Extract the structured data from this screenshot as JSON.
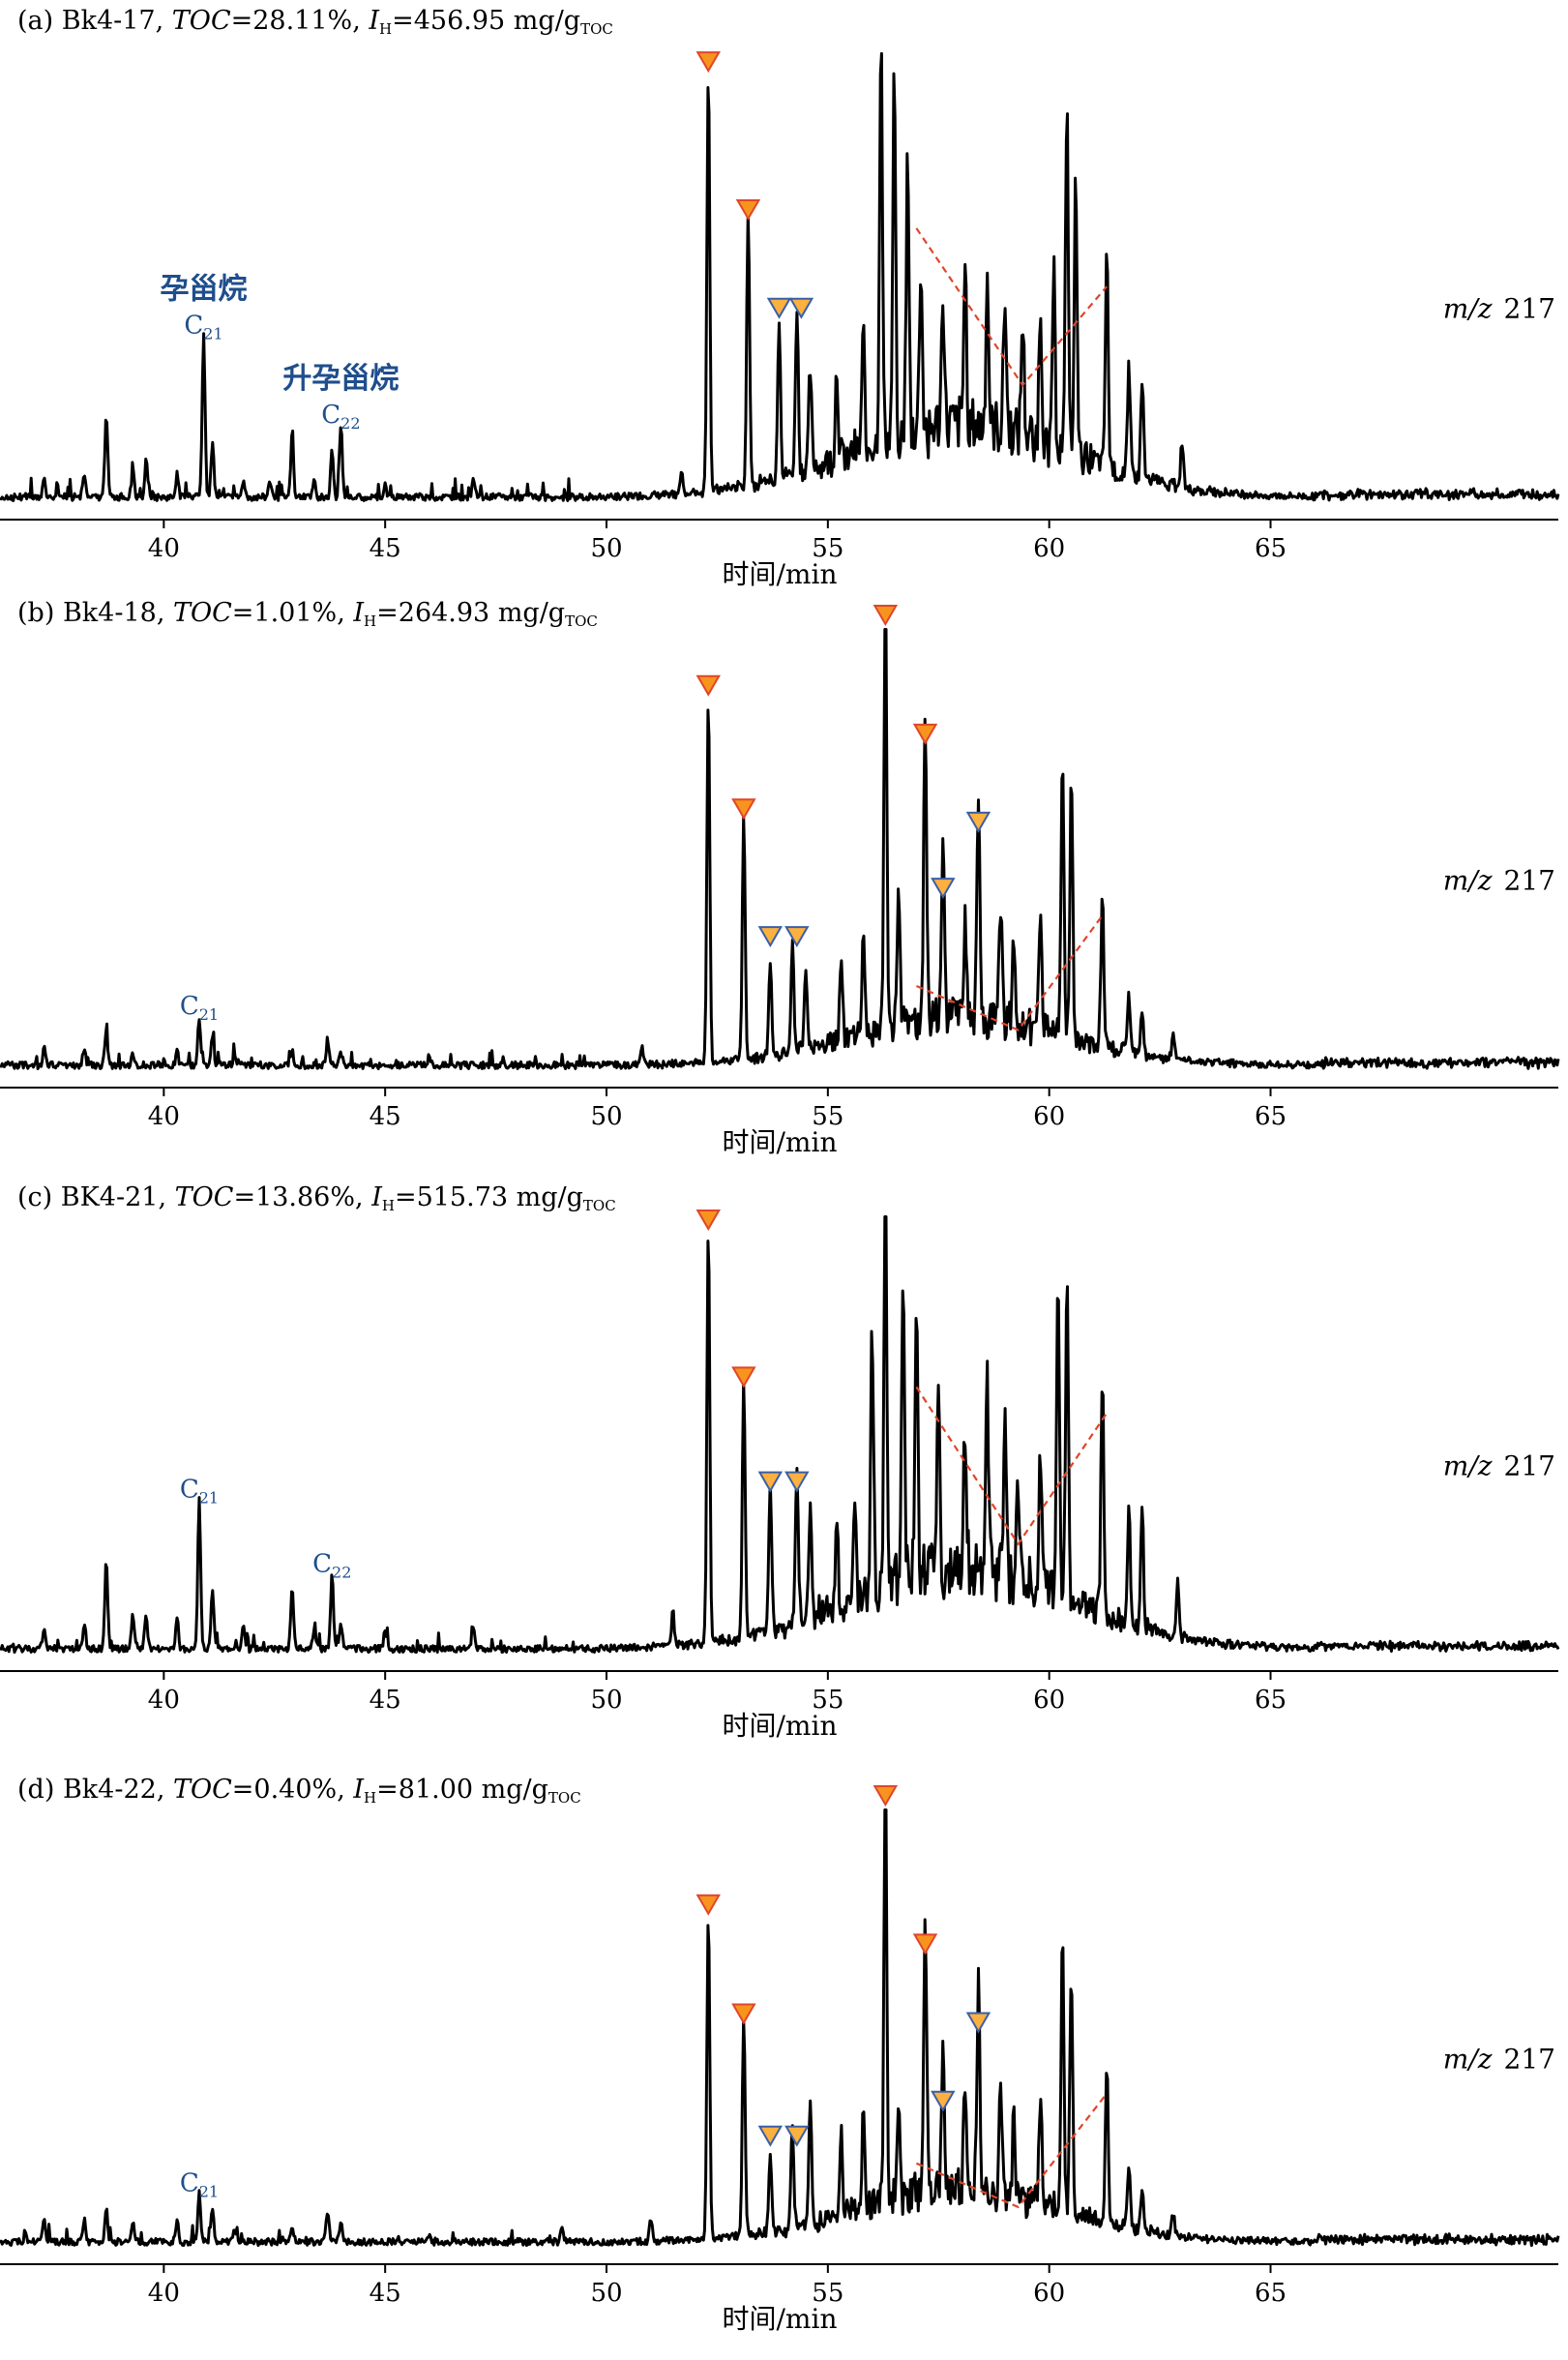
{
  "figure": {
    "ion_label_mz": "m/z",
    "ion_label_value": "217",
    "xlabel": "时间/min",
    "xticks": [
      40,
      45,
      50,
      55,
      60,
      65
    ],
    "xlim": [
      36.3,
      71.5
    ],
    "triangle_colors": {
      "orange": "#f7941d",
      "orange_border": "#e0452a",
      "blue_border": "#3a5fa8",
      "fill": "#fbb040"
    },
    "trend_line_color": "#e0452a",
    "annotation_color": "#1f4e8c"
  },
  "chart_data": [
    {
      "type": "line",
      "panel": "a",
      "sample": "Bk4-17",
      "header_prefix": "(a) ",
      "toc": "28.11%",
      "ih": "456.95 mg/g",
      "ih_unit_sub": "TOC",
      "xlabel": "时间/min",
      "ylabel": "",
      "xlim": [
        36.3,
        71.5
      ],
      "ylim": [
        0,
        100
      ],
      "annotations": [
        {
          "label_cn": "孕甾烷",
          "label": "C",
          "sub": "21",
          "x": 40.9
        },
        {
          "label_cn": "升孕甾烷",
          "label": "C",
          "sub": "22",
          "x": 44.0
        }
      ],
      "peaks": [
        [
          37.3,
          4
        ],
        [
          38.2,
          5
        ],
        [
          38.7,
          19
        ],
        [
          39.3,
          6
        ],
        [
          39.6,
          8
        ],
        [
          40.3,
          5
        ],
        [
          40.9,
          36
        ],
        [
          41.1,
          12
        ],
        [
          41.8,
          4
        ],
        [
          42.4,
          3
        ],
        [
          42.9,
          14
        ],
        [
          43.4,
          4
        ],
        [
          43.8,
          10
        ],
        [
          44.0,
          16
        ],
        [
          45.0,
          3
        ],
        [
          47.0,
          4
        ],
        [
          51.7,
          5
        ],
        [
          52.3,
          95
        ],
        [
          53.2,
          62
        ],
        [
          53.9,
          36
        ],
        [
          54.3,
          37
        ],
        [
          54.6,
          22
        ],
        [
          55.2,
          20
        ],
        [
          55.8,
          25
        ],
        [
          56.2,
          92
        ],
        [
          56.5,
          80
        ],
        [
          56.8,
          60
        ],
        [
          57.1,
          38
        ],
        [
          57.6,
          30
        ],
        [
          58.1,
          36
        ],
        [
          58.6,
          34
        ],
        [
          59.0,
          30
        ],
        [
          59.4,
          26
        ],
        [
          59.8,
          30
        ],
        [
          60.1,
          40
        ],
        [
          60.4,
          78
        ],
        [
          60.6,
          62
        ],
        [
          61.3,
          48
        ],
        [
          61.8,
          25
        ],
        [
          62.1,
          22
        ],
        [
          63.0,
          10
        ]
      ],
      "baseline_hump": {
        "center": 58.0,
        "width": 3.6,
        "height": 16
      },
      "triangles": [
        {
          "x": 52.3,
          "level": 95,
          "color": "orange"
        },
        {
          "x": 53.2,
          "level": 62,
          "color": "orange"
        },
        {
          "x": 53.9,
          "level": 40,
          "color": "blue"
        },
        {
          "x": 54.4,
          "level": 40,
          "color": "blue"
        }
      ],
      "trend_line": [
        [
          57.0,
          62
        ],
        [
          59.4,
          27
        ],
        [
          61.3,
          49
        ]
      ]
    },
    {
      "type": "line",
      "panel": "b",
      "sample": "Bk4-18",
      "header_prefix": "(b) ",
      "toc": "1.01%",
      "ih": "264.93 mg/g",
      "ih_unit_sub": "TOC",
      "xlabel": "时间/min",
      "ylabel": "",
      "xlim": [
        36.3,
        71.5
      ],
      "ylim": [
        0,
        100
      ],
      "annotations": [
        {
          "label_cn": "",
          "label": "C",
          "sub": "21",
          "x": 40.8
        }
      ],
      "peaks": [
        [
          37.3,
          4
        ],
        [
          38.2,
          4
        ],
        [
          38.7,
          8
        ],
        [
          39.3,
          3
        ],
        [
          40.3,
          3
        ],
        [
          40.8,
          11
        ],
        [
          41.1,
          6
        ],
        [
          41.6,
          2
        ],
        [
          42.9,
          3
        ],
        [
          43.7,
          6
        ],
        [
          44.0,
          3
        ],
        [
          46.0,
          2
        ],
        [
          50.8,
          4
        ],
        [
          52.3,
          84
        ],
        [
          53.1,
          56
        ],
        [
          53.7,
          22
        ],
        [
          54.2,
          25
        ],
        [
          54.5,
          18
        ],
        [
          55.3,
          18
        ],
        [
          55.8,
          20
        ],
        [
          56.3,
          100
        ],
        [
          56.6,
          30
        ],
        [
          57.2,
          72
        ],
        [
          57.6,
          40
        ],
        [
          58.1,
          22
        ],
        [
          58.4,
          52
        ],
        [
          58.9,
          28
        ],
        [
          59.2,
          18
        ],
        [
          59.8,
          25
        ],
        [
          60.3,
          64
        ],
        [
          60.5,
          60
        ],
        [
          61.2,
          35
        ],
        [
          61.8,
          12
        ],
        [
          62.1,
          10
        ],
        [
          62.8,
          5
        ]
      ],
      "baseline_hump": {
        "center": 58.0,
        "width": 3.4,
        "height": 11
      },
      "triangles": [
        {
          "x": 52.3,
          "level": 84,
          "color": "orange"
        },
        {
          "x": 53.1,
          "level": 56,
          "color": "orange"
        },
        {
          "x": 56.3,
          "level": 100,
          "color": "orange"
        },
        {
          "x": 57.2,
          "level": 73,
          "color": "orange"
        },
        {
          "x": 53.7,
          "level": 27,
          "color": "blue"
        },
        {
          "x": 54.3,
          "level": 27,
          "color": "blue"
        },
        {
          "x": 57.6,
          "level": 38,
          "color": "blue"
        },
        {
          "x": 58.4,
          "level": 53,
          "color": "blue"
        }
      ],
      "trend_line": [
        [
          57.0,
          20
        ],
        [
          59.3,
          10
        ],
        [
          61.2,
          36
        ]
      ]
    },
    {
      "type": "line",
      "panel": "c",
      "sample": "BK4-21",
      "header_prefix": "(c) ",
      "toc": "13.86%",
      "ih": "515.73 mg/g",
      "ih_unit_sub": "TOC",
      "xlabel": "时间/min",
      "ylabel": "",
      "xlim": [
        36.3,
        71.5
      ],
      "ylim": [
        0,
        100
      ],
      "annotations": [
        {
          "label_cn": "",
          "label": "C",
          "sub": "21",
          "x": 40.8
        },
        {
          "label_cn": "",
          "label": "C",
          "sub": "22",
          "x": 43.8
        }
      ],
      "peaks": [
        [
          37.3,
          4
        ],
        [
          38.2,
          5
        ],
        [
          38.7,
          20
        ],
        [
          39.3,
          8
        ],
        [
          39.6,
          8
        ],
        [
          40.3,
          7
        ],
        [
          40.8,
          34
        ],
        [
          41.1,
          14
        ],
        [
          41.8,
          5
        ],
        [
          42.9,
          14
        ],
        [
          43.4,
          5
        ],
        [
          43.8,
          17
        ],
        [
          44.0,
          6
        ],
        [
          45.0,
          4
        ],
        [
          47.0,
          5
        ],
        [
          51.5,
          8
        ],
        [
          52.3,
          96
        ],
        [
          53.1,
          60
        ],
        [
          53.7,
          34
        ],
        [
          54.3,
          36
        ],
        [
          54.6,
          25
        ],
        [
          55.2,
          20
        ],
        [
          55.6,
          22
        ],
        [
          56.0,
          60
        ],
        [
          56.3,
          96
        ],
        [
          56.7,
          70
        ],
        [
          57.0,
          62
        ],
        [
          57.5,
          40
        ],
        [
          58.1,
          34
        ],
        [
          58.6,
          46
        ],
        [
          59.0,
          36
        ],
        [
          59.3,
          25
        ],
        [
          59.8,
          30
        ],
        [
          60.2,
          76
        ],
        [
          60.4,
          72
        ],
        [
          61.2,
          54
        ],
        [
          61.8,
          28
        ],
        [
          62.1,
          26
        ],
        [
          62.9,
          12
        ]
      ],
      "baseline_hump": {
        "center": 58.0,
        "width": 3.6,
        "height": 18
      },
      "triangles": [
        {
          "x": 52.3,
          "level": 96,
          "color": "orange"
        },
        {
          "x": 53.1,
          "level": 60,
          "color": "orange"
        },
        {
          "x": 53.7,
          "level": 36,
          "color": "blue"
        },
        {
          "x": 54.3,
          "level": 36,
          "color": "blue"
        }
      ],
      "trend_line": [
        [
          57.0,
          62
        ],
        [
          59.3,
          26
        ],
        [
          61.3,
          56
        ]
      ]
    },
    {
      "type": "line",
      "panel": "d",
      "sample": "Bk4-22",
      "header_prefix": "(d) ",
      "toc": "0.40%",
      "ih": "81.00 mg/g",
      "ih_unit_sub": "TOC",
      "xlabel": "时间/min",
      "ylabel": "",
      "xlim": [
        36.3,
        71.5
      ],
      "ylim": [
        0,
        100
      ],
      "annotations": [
        {
          "label_cn": "",
          "label": "C",
          "sub": "21",
          "x": 40.8
        }
      ],
      "peaks": [
        [
          37.3,
          5
        ],
        [
          38.2,
          5
        ],
        [
          38.7,
          8
        ],
        [
          39.3,
          5
        ],
        [
          40.3,
          5
        ],
        [
          40.8,
          11
        ],
        [
          41.1,
          8
        ],
        [
          41.6,
          3
        ],
        [
          42.9,
          4
        ],
        [
          43.7,
          7
        ],
        [
          44.0,
          4
        ],
        [
          46.0,
          2
        ],
        [
          49.0,
          3
        ],
        [
          51.0,
          5
        ],
        [
          52.3,
          75
        ],
        [
          53.1,
          50
        ],
        [
          53.7,
          18
        ],
        [
          54.2,
          24
        ],
        [
          54.6,
          28
        ],
        [
          55.3,
          20
        ],
        [
          55.8,
          22
        ],
        [
          56.3,
          100
        ],
        [
          56.6,
          25
        ],
        [
          57.2,
          66
        ],
        [
          57.6,
          30
        ],
        [
          58.1,
          26
        ],
        [
          58.4,
          48
        ],
        [
          58.9,
          30
        ],
        [
          59.2,
          18
        ],
        [
          59.8,
          25
        ],
        [
          60.3,
          62
        ],
        [
          60.5,
          56
        ],
        [
          61.3,
          35
        ],
        [
          61.8,
          14
        ],
        [
          62.1,
          10
        ],
        [
          62.8,
          5
        ]
      ],
      "baseline_hump": {
        "center": 58.0,
        "width": 3.4,
        "height": 12
      },
      "triangles": [
        {
          "x": 52.3,
          "level": 75,
          "color": "orange"
        },
        {
          "x": 53.1,
          "level": 50,
          "color": "orange"
        },
        {
          "x": 56.3,
          "level": 100,
          "color": "orange"
        },
        {
          "x": 57.2,
          "level": 66,
          "color": "orange"
        },
        {
          "x": 53.7,
          "level": 22,
          "color": "blue"
        },
        {
          "x": 54.3,
          "level": 22,
          "color": "blue"
        },
        {
          "x": 57.6,
          "level": 30,
          "color": "blue"
        },
        {
          "x": 58.4,
          "level": 48,
          "color": "blue"
        }
      ],
      "trend_line": [
        [
          57.0,
          20
        ],
        [
          59.3,
          10
        ],
        [
          61.3,
          36
        ]
      ]
    }
  ]
}
